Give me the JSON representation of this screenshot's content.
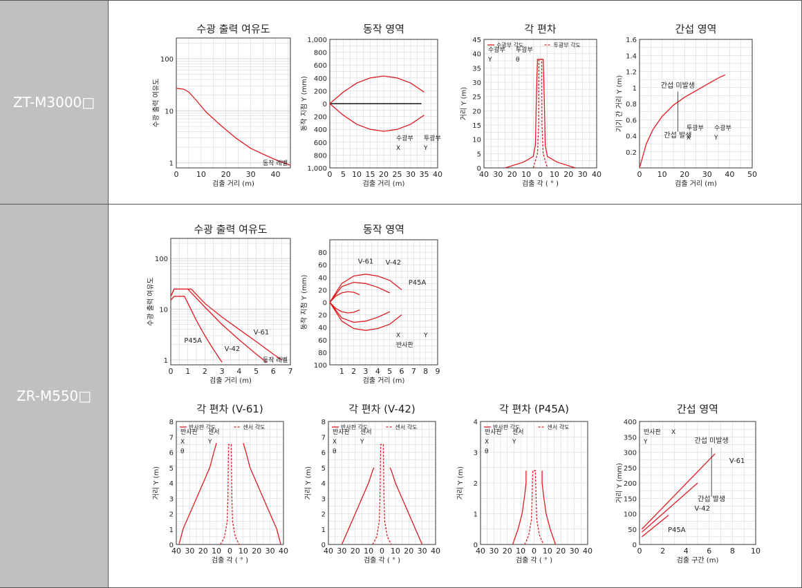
{
  "rows": [
    {
      "label": "ZT-M3000□"
    },
    {
      "label": "ZR-M550□"
    }
  ],
  "colors": {
    "curve": "#e0191f",
    "grid": "#cfcfcf",
    "band": "#bfc0c2"
  },
  "chart_data": [
    {
      "id": "c1",
      "type": "line",
      "title": "수광 출력 여유도",
      "xlabel": "검출 거리 (m)",
      "ylabel": "수광 출력 여유도",
      "yscale": "log",
      "xlim": [
        0,
        46
      ],
      "ylim": [
        0.8,
        250
      ],
      "xticks": [
        0,
        10,
        20,
        30,
        40
      ],
      "yticks": [
        1,
        10,
        100
      ],
      "note": "동작 레벨",
      "series": [
        {
          "x": [
            0,
            3,
            5,
            8,
            12,
            18,
            24,
            30,
            36,
            40,
            44,
            46
          ],
          "y": [
            27,
            26,
            23,
            16,
            9.5,
            5.2,
            3.0,
            1.9,
            1.4,
            1.15,
            0.98,
            0.9
          ]
        }
      ]
    },
    {
      "id": "c2",
      "type": "line",
      "title": "동작 영역",
      "xlabel": "검출 거리 (m)",
      "ylabel": "동작 지점 Y (mm)",
      "xlim": [
        0,
        40
      ],
      "ylim": [
        -1000,
        1000
      ],
      "xticks": [
        0,
        5,
        10,
        15,
        20,
        25,
        30,
        35,
        40
      ],
      "yticks": [
        1000,
        800,
        600,
        400,
        200,
        0,
        -200,
        -400,
        -600,
        -800,
        -1000
      ],
      "yticklabels": [
        "1,000",
        "800",
        "600",
        "400",
        "200",
        "0",
        "200",
        "400",
        "600",
        "800",
        "1,000"
      ],
      "inset": [
        "수광부",
        "투광부",
        "X",
        "Y"
      ],
      "series": [
        {
          "x": [
            0,
            5,
            10,
            15,
            20,
            25,
            30,
            35
          ],
          "y": [
            0,
            180,
            320,
            400,
            430,
            400,
            320,
            180
          ]
        },
        {
          "x": [
            0,
            5,
            10,
            15,
            20,
            25,
            30,
            35
          ],
          "y": [
            0,
            -180,
            -320,
            -400,
            -430,
            -400,
            -320,
            -180
          ]
        }
      ]
    },
    {
      "id": "c3",
      "type": "line",
      "title": "각 편차",
      "xlabel": "검출 각 ( ° )",
      "ylabel": "거리 Y (m)",
      "xlim": [
        -40,
        40
      ],
      "ylim": [
        0,
        45
      ],
      "xticks": [
        -40,
        -30,
        -20,
        -10,
        0,
        10,
        20,
        30,
        40
      ],
      "xticklabels": [
        "40",
        "30",
        "20",
        "10",
        "0",
        "10",
        "20",
        "30",
        "40"
      ],
      "yticks": [
        0,
        5,
        10,
        15,
        20,
        25,
        30,
        35,
        40,
        45
      ],
      "legend": [
        "수광부 각도",
        "투광부 각도"
      ],
      "inset": [
        "수광부",
        "투광부",
        "Y",
        "θ"
      ],
      "series": [
        {
          "name": "수광부 각도",
          "x": [
            -25,
            -12,
            -5,
            -3.5,
            -3,
            -2.5,
            -2,
            2,
            2.5,
            3,
            3.5,
            5,
            12,
            25
          ],
          "y": [
            0,
            2,
            4,
            8,
            20,
            30,
            38,
            38,
            30,
            20,
            8,
            4,
            2,
            0
          ]
        },
        {
          "name": "투광부 각도",
          "x": [
            -5,
            -2,
            -1.2,
            -1,
            1,
            1.2,
            2,
            5
          ],
          "y": [
            0,
            5,
            15,
            38,
            38,
            15,
            5,
            0
          ]
        }
      ]
    },
    {
      "id": "c4",
      "type": "line",
      "title": "간섭 영역",
      "xlabel": "검출 거리 (m)",
      "ylabel": "기기 간 거리 Y (m)",
      "xlim": [
        0,
        50
      ],
      "ylim": [
        0,
        1.6
      ],
      "xticks": [
        0,
        10,
        20,
        30,
        40,
        50
      ],
      "yticks": [
        0.2,
        0.4,
        0.6,
        0.8,
        1.0,
        1.2,
        1.4,
        1.6
      ],
      "annotations": [
        "간섭 미발생",
        "간섭 발생"
      ],
      "inset": [
        "투광부",
        "수광부",
        "X",
        "Y"
      ],
      "series": [
        {
          "x": [
            0,
            3,
            6,
            10,
            15,
            20,
            25,
            30,
            35,
            38
          ],
          "y": [
            0,
            0.3,
            0.48,
            0.64,
            0.78,
            0.88,
            0.96,
            1.04,
            1.12,
            1.16
          ]
        }
      ]
    },
    {
      "id": "c5",
      "type": "line",
      "title": "수광 출력 여유도",
      "xlabel": "검출 거리 (m)",
      "ylabel": "수광 출력 여유도",
      "yscale": "log",
      "xlim": [
        0,
        7
      ],
      "ylim": [
        0.8,
        250
      ],
      "xticks": [
        0,
        1,
        2,
        3,
        4,
        5,
        6,
        7
      ],
      "yticks": [
        1,
        10,
        100
      ],
      "note": "동작 레벨",
      "labels": [
        "V-61",
        "V-42",
        "P45A"
      ],
      "series": [
        {
          "name": "V-61",
          "x": [
            0,
            0.2,
            1.2,
            2,
            3,
            4,
            5,
            6,
            6.5
          ],
          "y": [
            18,
            25,
            25,
            13,
            7,
            4,
            2.3,
            1.3,
            1
          ]
        },
        {
          "name": "V-42",
          "x": [
            0,
            0.2,
            1.0,
            2,
            3,
            4,
            5,
            5.6
          ],
          "y": [
            18,
            25,
            25,
            11,
            5,
            2.5,
            1.3,
            0.9
          ]
        },
        {
          "name": "P45A",
          "x": [
            0,
            0.2,
            0.8,
            1.5,
            2,
            2.5,
            3
          ],
          "y": [
            15,
            18,
            18,
            6,
            3,
            1.6,
            0.9
          ]
        }
      ]
    },
    {
      "id": "c6",
      "type": "line",
      "title": "동작 영역",
      "xlabel": "검출 거리 (m)",
      "ylabel": "동작 지점 Y (mm)",
      "xlim": [
        0,
        9
      ],
      "ylim": [
        -100,
        100
      ],
      "xticks": [
        1,
        2,
        3,
        4,
        5,
        6,
        7,
        8,
        9
      ],
      "yticks": [
        80,
        60,
        40,
        20,
        0,
        -20,
        -40,
        -60,
        -80,
        -100
      ],
      "yticklabels": [
        "80",
        "60",
        "40",
        "20",
        "0",
        "20",
        "40",
        "60",
        "80",
        "100"
      ],
      "labels": [
        "P45A",
        "V-42",
        "V-61"
      ],
      "inset": [
        "X",
        "Y",
        "반사판"
      ],
      "series": [
        {
          "name": "V-61",
          "x": [
            0,
            1,
            2,
            3,
            4,
            5,
            6
          ],
          "y": [
            0,
            30,
            42,
            45,
            42,
            35,
            20
          ]
        },
        {
          "name": "V-61",
          "x": [
            0,
            1,
            2,
            3,
            4,
            5,
            6
          ],
          "y": [
            0,
            -30,
            -42,
            -45,
            -42,
            -35,
            -20
          ]
        },
        {
          "name": "V-42",
          "x": [
            0,
            1,
            2,
            3,
            4,
            5
          ],
          "y": [
            0,
            25,
            32,
            30,
            24,
            15
          ]
        },
        {
          "name": "V-42",
          "x": [
            0,
            1,
            2,
            3,
            4,
            5
          ],
          "y": [
            0,
            -25,
            -32,
            -30,
            -24,
            -15
          ]
        },
        {
          "name": "P45A",
          "x": [
            0,
            0.5,
            1,
            1.5,
            2,
            2.5
          ],
          "y": [
            0,
            10,
            15,
            17,
            16,
            12
          ]
        },
        {
          "name": "P45A",
          "x": [
            0,
            0.5,
            1,
            1.5,
            2,
            2.5
          ],
          "y": [
            0,
            -10,
            -15,
            -17,
            -16,
            -12
          ]
        }
      ]
    },
    {
      "id": "c7",
      "type": "line",
      "title": "각 편차 (V-61)",
      "xlabel": "검출 각 ( ° )",
      "ylabel": "거리 Y (m)",
      "xlim": [
        -40,
        40
      ],
      "ylim": [
        0,
        8
      ],
      "xticks": [
        -40,
        -30,
        -20,
        -10,
        0,
        10,
        20,
        30,
        40
      ],
      "xticklabels": [
        "40",
        "30",
        "20",
        "10",
        "0",
        "10",
        "20",
        "30",
        "40"
      ],
      "yticks": [
        0,
        1,
        2,
        3,
        4,
        5,
        6,
        7,
        8
      ],
      "legend": [
        "반사판 각도",
        "센서 각도"
      ],
      "inset": [
        "반사판",
        "센서",
        "X",
        "Y",
        "θ"
      ],
      "series": [
        {
          "name": "반사판 각도",
          "x": [
            -38,
            -35,
            -30,
            -25,
            -20,
            -15,
            -12,
            -10
          ],
          "y": [
            0,
            1,
            2,
            3,
            4,
            5,
            6,
            6.6
          ]
        },
        {
          "name": "반사판 각도",
          "x": [
            38,
            35,
            30,
            25,
            20,
            15,
            12,
            10
          ],
          "y": [
            0,
            1,
            2,
            3,
            4,
            5,
            6,
            6.6
          ]
        },
        {
          "name": "센서 각도",
          "x": [
            -7,
            -4,
            -2,
            -1.5,
            -1,
            1,
            1.5,
            2,
            4,
            7
          ],
          "y": [
            0,
            0.5,
            1.5,
            3,
            6.5,
            6.5,
            3,
            1.5,
            0.5,
            0
          ]
        }
      ]
    },
    {
      "id": "c8",
      "type": "line",
      "title": "각 편차 (V-42)",
      "xlabel": "검출 각 ( ° )",
      "ylabel": "거리 Y (m)",
      "xlim": [
        -40,
        40
      ],
      "ylim": [
        0,
        8
      ],
      "xticks": [
        -40,
        -30,
        -20,
        -10,
        0,
        10,
        20,
        30,
        40
      ],
      "xticklabels": [
        "40",
        "30",
        "20",
        "10",
        "0",
        "10",
        "20",
        "30",
        "40"
      ],
      "yticks": [
        0,
        1,
        2,
        3,
        4,
        5,
        6,
        7,
        8
      ],
      "legend": [
        "반사판 각도",
        "센서 각도"
      ],
      "inset": [
        "반사판",
        "센서",
        "X",
        "Y",
        "θ"
      ],
      "series": [
        {
          "name": "반사판 각도",
          "x": [
            -30,
            -25,
            -20,
            -15,
            -10,
            -7,
            -6
          ],
          "y": [
            0,
            1,
            2,
            3,
            4,
            4.8,
            5
          ]
        },
        {
          "name": "반사판 각도",
          "x": [
            30,
            25,
            20,
            15,
            10,
            7,
            6
          ],
          "y": [
            0,
            1,
            2,
            3,
            4,
            4.8,
            5
          ]
        },
        {
          "name": "센서 각도",
          "x": [
            -7,
            -4,
            -2,
            -1.5,
            -1,
            1,
            1.5,
            2,
            4,
            7
          ],
          "y": [
            0,
            0.5,
            1.5,
            3,
            6.5,
            6.5,
            3,
            1.5,
            0.5,
            0
          ]
        }
      ]
    },
    {
      "id": "c9",
      "type": "line",
      "title": "각 편차 (P45A)",
      "xlabel": "검출 각 ( ° )",
      "ylabel": "거리 Y (m)",
      "xlim": [
        -40,
        40
      ],
      "ylim": [
        0,
        4
      ],
      "xticks": [
        -40,
        -30,
        -20,
        -10,
        0,
        10,
        20,
        30,
        40
      ],
      "xticklabels": [
        "40",
        "30",
        "20",
        "10",
        "0",
        "10",
        "20",
        "30",
        "40"
      ],
      "yticks": [
        0,
        1,
        2,
        3,
        4
      ],
      "legend": [
        "반사판 각도",
        "센서 각도"
      ],
      "inset": [
        "반사판",
        "센서",
        "X",
        "Y",
        "θ"
      ],
      "series": [
        {
          "name": "반사판 각도",
          "x": [
            -16,
            -12,
            -9,
            -7,
            -6,
            -6
          ],
          "y": [
            0,
            0.5,
            1,
            1.6,
            2,
            2.4
          ]
        },
        {
          "name": "반사판 각도",
          "x": [
            16,
            12,
            9,
            7,
            6,
            6
          ],
          "y": [
            0,
            0.5,
            1,
            1.6,
            2,
            2.4
          ]
        },
        {
          "name": "센서 각도",
          "x": [
            -7,
            -4,
            -2,
            -1.5,
            -1,
            1,
            1.5,
            2,
            4,
            7
          ],
          "y": [
            0,
            0.3,
            0.8,
            1.5,
            2.4,
            2.4,
            1.5,
            0.8,
            0.3,
            0
          ]
        }
      ]
    },
    {
      "id": "c10",
      "type": "line",
      "title": "간섭 영역",
      "xlabel": "검출 구간 (m)",
      "ylabel": "거리 Y (mm)",
      "xlim": [
        0,
        10
      ],
      "ylim": [
        0,
        400
      ],
      "xticks": [
        0,
        2,
        4,
        6,
        8,
        10
      ],
      "yticks": [
        0,
        50,
        100,
        150,
        200,
        250,
        300,
        350,
        400
      ],
      "annotations": [
        "간섭 미발생",
        "간섭 발생"
      ],
      "labels": [
        "V-61",
        "V-42",
        "P45A"
      ],
      "inset": [
        "반사판",
        "X",
        "Y"
      ],
      "series": [
        {
          "name": "V-61",
          "x": [
            0.2,
            6.5
          ],
          "y": [
            50,
            295
          ]
        },
        {
          "name": "V-42",
          "x": [
            0.2,
            5
          ],
          "y": [
            40,
            200
          ]
        },
        {
          "name": "P45A",
          "x": [
            0.2,
            2.5
          ],
          "y": [
            25,
            95
          ]
        }
      ]
    }
  ]
}
